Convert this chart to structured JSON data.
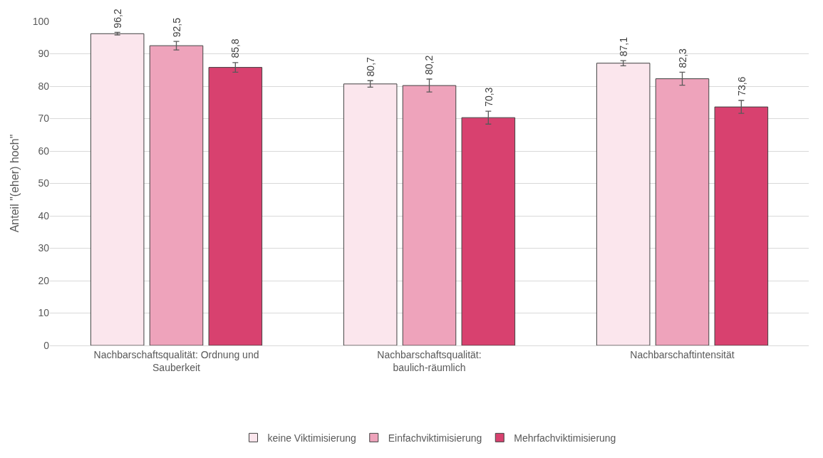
{
  "chart_data": {
    "type": "bar",
    "ylabel": "Anteil \"(eher) hoch\"",
    "categories": [
      "Nachbarschaftsqualität: Ordnung und Sauberkeit",
      "Nachbarschaftsqualität: baulich-räumlich",
      "Nachbarschaftintensität"
    ],
    "series": [
      {
        "name": "keine Viktimisierung",
        "color": "#fbe6ed",
        "values": [
          96.2,
          80.7,
          87.1
        ],
        "errors": [
          0.4,
          1.0,
          0.8
        ],
        "value_labels": [
          "96,2",
          "80,7",
          "87,1"
        ]
      },
      {
        "name": "Einfachviktimisierung",
        "color": "#eea3bb",
        "values": [
          92.5,
          80.2,
          82.3
        ],
        "errors": [
          1.3,
          2.0,
          2.0
        ],
        "value_labels": [
          "92,5",
          "80,2",
          "82,3"
        ]
      },
      {
        "name": "Mehrfachviktimisierung",
        "color": "#d8416f",
        "values": [
          85.8,
          70.3,
          73.6
        ],
        "errors": [
          1.5,
          2.0,
          2.0
        ],
        "value_labels": [
          "85,8",
          "70,3",
          "73,6"
        ]
      }
    ],
    "ylim": [
      0,
      100
    ],
    "yticks": [
      0,
      10,
      20,
      30,
      40,
      50,
      60,
      70,
      80,
      90,
      100
    ],
    "grid": "y",
    "legend": "bottom"
  }
}
